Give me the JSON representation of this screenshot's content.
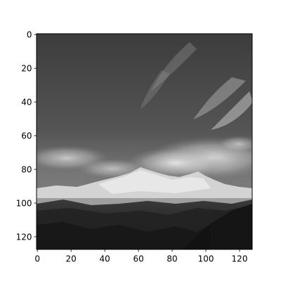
{
  "chart_data": {
    "type": "heatmap",
    "kind": "image",
    "title": "",
    "xlabel": "",
    "ylabel": "",
    "image_size": [
      128,
      128
    ],
    "extent": {
      "x": [
        -0.5,
        127.5
      ],
      "y": [
        127.5,
        -0.5
      ]
    },
    "y_axis_inverted": true,
    "xticks": [
      0,
      20,
      40,
      60,
      80,
      100,
      120
    ],
    "xtick_labels": [
      "0",
      "20",
      "40",
      "60",
      "80",
      "100",
      "120"
    ],
    "yticks": [
      0,
      20,
      40,
      60,
      80,
      100,
      120
    ],
    "ytick_labels": [
      "0",
      "20",
      "40",
      "60",
      "80",
      "100",
      "120"
    ],
    "grid": false,
    "legend": "none",
    "colormap": "gray",
    "image_content": "grayscale photograph of snow-capped mountain peaks under a cloudy sky with wispy clouds"
  }
}
